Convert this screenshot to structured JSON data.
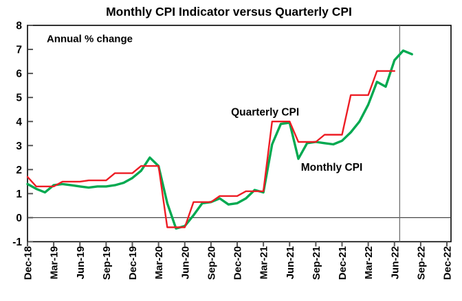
{
  "chart_data": {
    "type": "line",
    "title": "Monthly CPI Indicator versus Quarterly CPI",
    "annotation": "Annual % change",
    "x_start_month": "Dec-18",
    "x_span_months": 48,
    "x_tick_labels": [
      "Dec-18",
      "Mar-19",
      "Jun-19",
      "Sep-19",
      "Dec-19",
      "Mar-20",
      "Jun-20",
      "Sep-20",
      "Dec-20",
      "Mar-21",
      "Jun-21",
      "Sep-21",
      "Dec-21",
      "Mar-22",
      "Jun-22",
      "Sep-22",
      "Dec-22"
    ],
    "y_ticks": [
      8,
      7,
      6,
      5,
      4,
      3,
      2,
      1,
      0,
      -1
    ],
    "ylim": [
      -1,
      8
    ],
    "ylabel": "",
    "xlabel": "",
    "grid": false,
    "zero_line": true,
    "quarterly_data_end_marker_month_index": 42.6,
    "series": [
      {
        "name": "Monthly CPI",
        "color": "#00a950",
        "frequency": "monthly",
        "start": "Dec-18",
        "values": [
          1.4,
          1.2,
          1.05,
          1.35,
          1.4,
          1.35,
          1.3,
          1.25,
          1.3,
          1.3,
          1.35,
          1.45,
          1.65,
          1.95,
          2.5,
          2.15,
          0.6,
          -0.45,
          -0.35,
          0.1,
          0.6,
          0.65,
          0.8,
          0.55,
          0.6,
          0.8,
          1.15,
          1.05,
          3.05,
          3.9,
          3.95,
          2.45,
          3.1,
          3.15,
          3.1,
          3.05,
          3.2,
          3.55,
          4.0,
          4.7,
          5.65,
          5.45,
          6.55,
          6.95,
          6.8
        ],
        "label_pos": {
          "x_month": 31.3,
          "y_value": 1.95
        }
      },
      {
        "name": "Quarterly CPI",
        "color": "#ed1c24",
        "frequency": "quarterly-step",
        "quarters": [
          [
            "Dec-18",
            1.7
          ],
          [
            "Mar-19",
            1.3
          ],
          [
            "Jun-19",
            1.5
          ],
          [
            "Sep-19",
            1.55
          ],
          [
            "Dec-19",
            1.85
          ],
          [
            "Mar-20",
            2.15
          ],
          [
            "Jun-20",
            -0.4
          ],
          [
            "Sep-20",
            0.65
          ],
          [
            "Dec-20",
            0.9
          ],
          [
            "Mar-21",
            1.1
          ],
          [
            "Jun-21",
            4.0
          ],
          [
            "Sep-21",
            3.15
          ],
          [
            "Dec-21",
            3.45
          ],
          [
            "Mar-22",
            5.1
          ],
          [
            "Jun-22",
            6.1
          ]
        ],
        "label_pos": {
          "x_month": 23.3,
          "y_value": 4.25
        }
      }
    ],
    "annotation_pos": {
      "x_month": 2.2,
      "y_value": 7.3
    }
  }
}
